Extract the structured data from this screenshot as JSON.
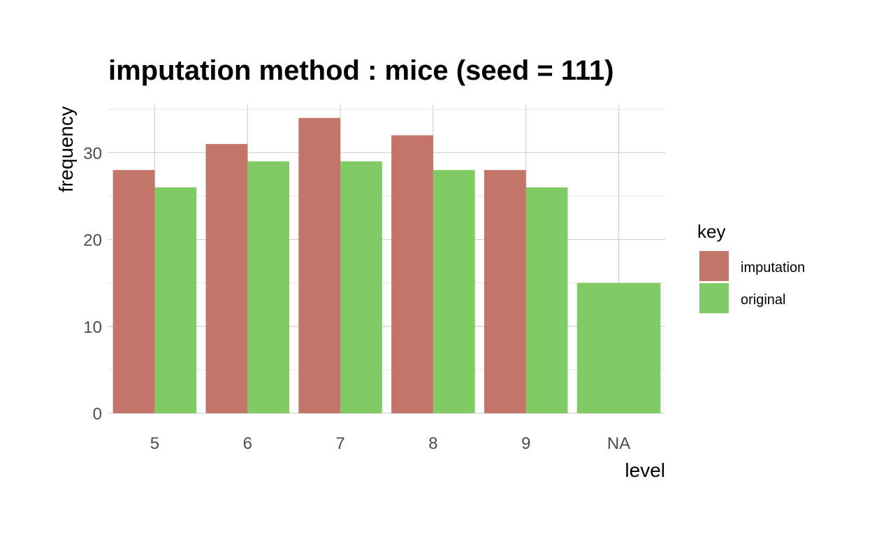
{
  "chart_data": {
    "type": "bar",
    "title": "imputation method : mice (seed = 111)",
    "xlabel": "level",
    "ylabel": "frequency",
    "categories": [
      "5",
      "6",
      "7",
      "8",
      "9",
      "NA"
    ],
    "series": [
      {
        "name": "imputation",
        "color": "#c4756a",
        "values": [
          28,
          31,
          34,
          32,
          28,
          null
        ]
      },
      {
        "name": "original",
        "color": "#80cb63",
        "values": [
          26,
          29,
          29,
          28,
          26,
          15
        ]
      }
    ],
    "yticks": [
      0,
      10,
      20,
      30
    ],
    "ylim": [
      0,
      35.5
    ],
    "grid": true,
    "legend": {
      "title": "key",
      "position": "right"
    }
  }
}
